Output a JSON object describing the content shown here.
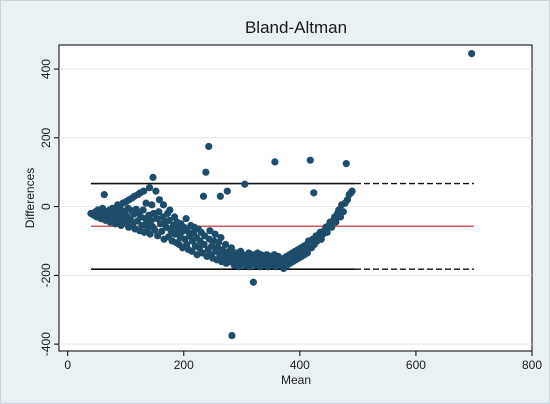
{
  "chart_data": {
    "type": "scatter",
    "title": "Bland-Altman",
    "xlabel": "Mean",
    "ylabel": "Differences",
    "xlim": [
      -15,
      800
    ],
    "ylim": [
      -420,
      470
    ],
    "x_ticks": [
      0,
      200,
      400,
      600,
      800
    ],
    "y_ticks": [
      -400,
      -200,
      0,
      200,
      400
    ],
    "grid": "horizontal",
    "colors": {
      "points": "#1e4d6b",
      "mean_line": "#b5272d",
      "limit_lines": "#111111",
      "background": "#eaf1f3",
      "plot_background": "#ffffff",
      "grid": "#e3e8ea"
    },
    "reference_lines": [
      {
        "name": "upper-limit",
        "y": 67,
        "solid_to_x": 495,
        "dashed_to_x": 700
      },
      {
        "name": "mean-difference",
        "y": -57,
        "solid_to_x": 700
      },
      {
        "name": "lower-limit",
        "y": -182,
        "solid_to_x": 495,
        "dashed_to_x": 700
      }
    ],
    "points": [
      [
        40,
        -20
      ],
      [
        45,
        -25
      ],
      [
        48,
        -15
      ],
      [
        50,
        -30
      ],
      [
        52,
        -10
      ],
      [
        55,
        -20
      ],
      [
        57,
        -35
      ],
      [
        60,
        -5
      ],
      [
        62,
        -25
      ],
      [
        63,
        35
      ],
      [
        65,
        -40
      ],
      [
        67,
        -15
      ],
      [
        70,
        -28
      ],
      [
        72,
        -10
      ],
      [
        73,
        -45
      ],
      [
        75,
        -22
      ],
      [
        77,
        -5
      ],
      [
        78,
        -35
      ],
      [
        80,
        -18
      ],
      [
        82,
        -50
      ],
      [
        83,
        -12
      ],
      [
        85,
        -30
      ],
      [
        86,
        5
      ],
      [
        88,
        -25
      ],
      [
        90,
        -40
      ],
      [
        91,
        -8
      ],
      [
        92,
        -55
      ],
      [
        94,
        -20
      ],
      [
        95,
        10
      ],
      [
        96,
        -35
      ],
      [
        98,
        -15
      ],
      [
        100,
        -45
      ],
      [
        101,
        15
      ],
      [
        102,
        -28
      ],
      [
        104,
        -5
      ],
      [
        105,
        -60
      ],
      [
        106,
        20
      ],
      [
        108,
        -38
      ],
      [
        110,
        -12
      ],
      [
        111,
        25
      ],
      [
        112,
        -50
      ],
      [
        114,
        -22
      ],
      [
        115,
        30
      ],
      [
        116,
        -65
      ],
      [
        118,
        -8
      ],
      [
        120,
        -42
      ],
      [
        121,
        35
      ],
      [
        122,
        -18
      ],
      [
        124,
        -70
      ],
      [
        125,
        40
      ],
      [
        126,
        -30
      ],
      [
        128,
        -55
      ],
      [
        130,
        -10
      ],
      [
        131,
        45
      ],
      [
        132,
        -75
      ],
      [
        134,
        -35
      ],
      [
        135,
        10
      ],
      [
        136,
        -48
      ],
      [
        138,
        -62
      ],
      [
        140,
        -25
      ],
      [
        141,
        55
      ],
      [
        142,
        -80
      ],
      [
        144,
        -40
      ],
      [
        145,
        5
      ],
      [
        146,
        -58
      ],
      [
        147,
        85
      ],
      [
        148,
        -20
      ],
      [
        150,
        -68
      ],
      [
        152,
        45
      ],
      [
        154,
        -35
      ],
      [
        155,
        -85
      ],
      [
        157,
        -15
      ],
      [
        158,
        20
      ],
      [
        160,
        -50
      ],
      [
        162,
        -72
      ],
      [
        164,
        -30
      ],
      [
        165,
        5
      ],
      [
        166,
        -95
      ],
      [
        168,
        -45
      ],
      [
        170,
        -60
      ],
      [
        172,
        -20
      ],
      [
        174,
        -88
      ],
      [
        175,
        -40
      ],
      [
        176,
        -10
      ],
      [
        178,
        -70
      ],
      [
        180,
        -100
      ],
      [
        182,
        -55
      ],
      [
        184,
        -30
      ],
      [
        185,
        -80
      ],
      [
        187,
        -105
      ],
      [
        188,
        -45
      ],
      [
        190,
        -65
      ],
      [
        192,
        -110
      ],
      [
        194,
        -90
      ],
      [
        195,
        -50
      ],
      [
        196,
        -75
      ],
      [
        198,
        -120
      ],
      [
        200,
        -60
      ],
      [
        202,
        -95
      ],
      [
        204,
        -35
      ],
      [
        205,
        -110
      ],
      [
        206,
        -70
      ],
      [
        208,
        -125
      ],
      [
        210,
        -85
      ],
      [
        212,
        -55
      ],
      [
        214,
        -130
      ],
      [
        215,
        -100
      ],
      [
        217,
        -75
      ],
      [
        218,
        -60
      ],
      [
        220,
        -115
      ],
      [
        222,
        -90
      ],
      [
        223,
        -140
      ],
      [
        225,
        -65
      ],
      [
        227,
        -120
      ],
      [
        228,
        -100
      ],
      [
        230,
        -75
      ],
      [
        232,
        -135
      ],
      [
        234,
        30
      ],
      [
        235,
        -110
      ],
      [
        236,
        -85
      ],
      [
        238,
        100
      ],
      [
        240,
        -145
      ],
      [
        242,
        -125
      ],
      [
        243,
        175
      ],
      [
        244,
        -95
      ],
      [
        245,
        -70
      ],
      [
        247,
        -140
      ],
      [
        248,
        -115
      ],
      [
        250,
        -150
      ],
      [
        252,
        -100
      ],
      [
        254,
        -80
      ],
      [
        255,
        -130
      ],
      [
        257,
        -155
      ],
      [
        258,
        -120
      ],
      [
        260,
        -105
      ],
      [
        262,
        -140
      ],
      [
        263,
        30
      ],
      [
        264,
        -90
      ],
      [
        265,
        -160
      ],
      [
        267,
        -125
      ],
      [
        268,
        -150
      ],
      [
        270,
        -135
      ],
      [
        272,
        -110
      ],
      [
        273,
        -165
      ],
      [
        275,
        45
      ],
      [
        276,
        -145
      ],
      [
        278,
        -130
      ],
      [
        280,
        -160
      ],
      [
        282,
        -120
      ],
      [
        283,
        -375
      ],
      [
        284,
        -150
      ],
      [
        285,
        -140
      ],
      [
        287,
        -170
      ],
      [
        288,
        -155
      ],
      [
        290,
        -135
      ],
      [
        292,
        -160
      ],
      [
        293,
        -145
      ],
      [
        295,
        -175
      ],
      [
        297,
        -150
      ],
      [
        298,
        -130
      ],
      [
        300,
        -165
      ],
      [
        302,
        -140
      ],
      [
        303,
        -155
      ],
      [
        305,
        65
      ],
      [
        306,
        -170
      ],
      [
        308,
        -145
      ],
      [
        310,
        -160
      ],
      [
        312,
        -135
      ],
      [
        313,
        -175
      ],
      [
        315,
        -150
      ],
      [
        316,
        -165
      ],
      [
        318,
        -140
      ],
      [
        320,
        -220
      ],
      [
        321,
        -160
      ],
      [
        322,
        -145
      ],
      [
        324,
        -170
      ],
      [
        325,
        -155
      ],
      [
        327,
        -135
      ],
      [
        328,
        -165
      ],
      [
        330,
        -150
      ],
      [
        332,
        -175
      ],
      [
        333,
        -140
      ],
      [
        335,
        -160
      ],
      [
        336,
        -145
      ],
      [
        338,
        -170
      ],
      [
        340,
        -155
      ],
      [
        342,
        -165
      ],
      [
        343,
        -140
      ],
      [
        345,
        -175
      ],
      [
        347,
        -150
      ],
      [
        348,
        -160
      ],
      [
        350,
        -145
      ],
      [
        352,
        -170
      ],
      [
        353,
        -155
      ],
      [
        355,
        -165
      ],
      [
        356,
        -140
      ],
      [
        357,
        130
      ],
      [
        358,
        -175
      ],
      [
        360,
        -150
      ],
      [
        362,
        -160
      ],
      [
        363,
        -145
      ],
      [
        365,
        -170
      ],
      [
        367,
        -155
      ],
      [
        368,
        -165
      ],
      [
        370,
        -175
      ],
      [
        372,
        -180
      ],
      [
        373,
        -150
      ],
      [
        375,
        -160
      ],
      [
        377,
        -145
      ],
      [
        378,
        -170
      ],
      [
        380,
        -155
      ],
      [
        382,
        -140
      ],
      [
        383,
        -165
      ],
      [
        385,
        -150
      ],
      [
        387,
        -135
      ],
      [
        388,
        -160
      ],
      [
        390,
        -145
      ],
      [
        392,
        -130
      ],
      [
        393,
        -155
      ],
      [
        395,
        -140
      ],
      [
        397,
        -125
      ],
      [
        398,
        -150
      ],
      [
        400,
        -135
      ],
      [
        402,
        -120
      ],
      [
        403,
        -145
      ],
      [
        405,
        -130
      ],
      [
        407,
        -115
      ],
      [
        408,
        -140
      ],
      [
        410,
        -125
      ],
      [
        412,
        -110
      ],
      [
        413,
        -135
      ],
      [
        415,
        -100
      ],
      [
        418,
        135
      ],
      [
        420,
        -120
      ],
      [
        422,
        -95
      ],
      [
        424,
        40
      ],
      [
        425,
        -110
      ],
      [
        428,
        -85
      ],
      [
        430,
        -100
      ],
      [
        432,
        -90
      ],
      [
        435,
        -75
      ],
      [
        437,
        -95
      ],
      [
        440,
        -80
      ],
      [
        442,
        -70
      ],
      [
        445,
        -60
      ],
      [
        447,
        -75
      ],
      [
        450,
        -55
      ],
      [
        452,
        -45
      ],
      [
        455,
        -60
      ],
      [
        458,
        -40
      ],
      [
        460,
        -30
      ],
      [
        462,
        -45
      ],
      [
        465,
        -20
      ],
      [
        467,
        -10
      ],
      [
        470,
        -30
      ],
      [
        472,
        5
      ],
      [
        475,
        -15
      ],
      [
        478,
        10
      ],
      [
        480,
        125
      ],
      [
        482,
        20
      ],
      [
        485,
        35
      ],
      [
        488,
        40
      ],
      [
        490,
        45
      ],
      [
        696,
        445
      ]
    ]
  }
}
